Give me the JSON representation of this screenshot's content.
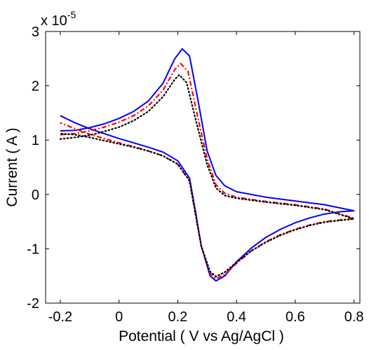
{
  "chart_data": {
    "type": "line",
    "title": "",
    "xlabel": "Potential ( V vs Ag/AgCl )",
    "ylabel": "Current ( A )",
    "y_multiplier_base": "x 10",
    "y_multiplier_exponent": "-5",
    "xlim": [
      -0.25,
      0.82
    ],
    "ylim": [
      -2,
      3
    ],
    "x_ticks": [
      -0.2,
      0,
      0.2,
      0.4,
      0.6,
      0.8
    ],
    "x_tick_labels": [
      "-0.2",
      "0",
      "0.2",
      "0.4",
      "0.6",
      "0.8"
    ],
    "y_ticks": [
      -2,
      -1,
      0,
      1,
      2,
      3
    ],
    "y_tick_labels": [
      "-2",
      "-1",
      "0",
      "1",
      "2",
      "3"
    ],
    "grid": false,
    "legend": false,
    "series": [
      {
        "color": "#0000ff",
        "style": "solid",
        "forward": [
          [
            -0.2,
            1.17
          ],
          [
            -0.15,
            1.18
          ],
          [
            -0.1,
            1.23
          ],
          [
            -0.05,
            1.3
          ],
          [
            0,
            1.4
          ],
          [
            0.05,
            1.53
          ],
          [
            0.1,
            1.72
          ],
          [
            0.15,
            2.05
          ],
          [
            0.19,
            2.5
          ],
          [
            0.215,
            2.68
          ],
          [
            0.24,
            2.55
          ],
          [
            0.27,
            1.7
          ],
          [
            0.3,
            0.8
          ],
          [
            0.33,
            0.35
          ],
          [
            0.36,
            0.16
          ],
          [
            0.4,
            0.05
          ],
          [
            0.5,
            -0.05
          ],
          [
            0.6,
            -0.12
          ],
          [
            0.7,
            -0.19
          ],
          [
            0.8,
            -0.3
          ]
        ],
        "reverse": [
          [
            0.8,
            -0.3
          ],
          [
            0.75,
            -0.32
          ],
          [
            0.7,
            -0.36
          ],
          [
            0.65,
            -0.43
          ],
          [
            0.6,
            -0.52
          ],
          [
            0.55,
            -0.64
          ],
          [
            0.5,
            -0.79
          ],
          [
            0.45,
            -0.99
          ],
          [
            0.4,
            -1.24
          ],
          [
            0.36,
            -1.5
          ],
          [
            0.33,
            -1.59
          ],
          [
            0.31,
            -1.5
          ],
          [
            0.28,
            -0.95
          ],
          [
            0.26,
            -0.3
          ],
          [
            0.24,
            0.3
          ],
          [
            0.2,
            0.62
          ],
          [
            0.15,
            0.78
          ],
          [
            0.1,
            0.87
          ],
          [
            0.05,
            0.95
          ],
          [
            0,
            1.03
          ],
          [
            -0.05,
            1.12
          ],
          [
            -0.1,
            1.21
          ],
          [
            -0.15,
            1.32
          ],
          [
            -0.2,
            1.45
          ]
        ]
      },
      {
        "color": "#ff0000",
        "style": "dash-dot",
        "forward": [
          [
            -0.2,
            1.1
          ],
          [
            -0.15,
            1.12
          ],
          [
            -0.1,
            1.17
          ],
          [
            -0.05,
            1.24
          ],
          [
            0,
            1.33
          ],
          [
            0.05,
            1.45
          ],
          [
            0.1,
            1.63
          ],
          [
            0.15,
            1.92
          ],
          [
            0.19,
            2.3
          ],
          [
            0.21,
            2.41
          ],
          [
            0.235,
            2.26
          ],
          [
            0.265,
            1.5
          ],
          [
            0.3,
            0.65
          ],
          [
            0.33,
            0.18
          ],
          [
            0.36,
            0.02
          ],
          [
            0.4,
            -0.05
          ],
          [
            0.5,
            -0.13
          ],
          [
            0.6,
            -0.19
          ],
          [
            0.7,
            -0.27
          ],
          [
            0.8,
            -0.44
          ]
        ],
        "reverse": [
          [
            0.8,
            -0.47
          ],
          [
            0.75,
            -0.47
          ],
          [
            0.7,
            -0.5
          ],
          [
            0.65,
            -0.56
          ],
          [
            0.6,
            -0.64
          ],
          [
            0.55,
            -0.74
          ],
          [
            0.5,
            -0.87
          ],
          [
            0.45,
            -1.04
          ],
          [
            0.4,
            -1.27
          ],
          [
            0.36,
            -1.47
          ],
          [
            0.33,
            -1.55
          ],
          [
            0.31,
            -1.45
          ],
          [
            0.28,
            -0.95
          ],
          [
            0.26,
            -0.35
          ],
          [
            0.24,
            0.25
          ],
          [
            0.2,
            0.55
          ],
          [
            0.15,
            0.71
          ],
          [
            0.1,
            0.8
          ],
          [
            0.05,
            0.88
          ],
          [
            0,
            0.95
          ],
          [
            -0.05,
            1.03
          ],
          [
            -0.1,
            1.11
          ],
          [
            -0.15,
            1.21
          ],
          [
            -0.2,
            1.32
          ]
        ]
      },
      {
        "color": "#000000",
        "style": "dotted",
        "forward": [
          [
            -0.2,
            1.02
          ],
          [
            -0.15,
            1.05
          ],
          [
            -0.1,
            1.09
          ],
          [
            -0.05,
            1.16
          ],
          [
            0,
            1.24
          ],
          [
            0.05,
            1.36
          ],
          [
            0.1,
            1.53
          ],
          [
            0.15,
            1.8
          ],
          [
            0.19,
            2.12
          ],
          [
            0.205,
            2.2
          ],
          [
            0.23,
            2.06
          ],
          [
            0.26,
            1.4
          ],
          [
            0.3,
            0.55
          ],
          [
            0.33,
            0.12
          ],
          [
            0.36,
            -0.02
          ],
          [
            0.4,
            -0.07
          ],
          [
            0.5,
            -0.14
          ],
          [
            0.6,
            -0.2
          ],
          [
            0.7,
            -0.28
          ],
          [
            0.8,
            -0.45
          ]
        ],
        "reverse": [
          [
            0.8,
            -0.48
          ],
          [
            0.75,
            -0.48
          ],
          [
            0.7,
            -0.51
          ],
          [
            0.65,
            -0.57
          ],
          [
            0.6,
            -0.65
          ],
          [
            0.55,
            -0.75
          ],
          [
            0.5,
            -0.88
          ],
          [
            0.45,
            -1.04
          ],
          [
            0.4,
            -1.25
          ],
          [
            0.36,
            -1.43
          ],
          [
            0.33,
            -1.51
          ],
          [
            0.31,
            -1.42
          ],
          [
            0.28,
            -0.95
          ],
          [
            0.26,
            -0.35
          ],
          [
            0.24,
            0.25
          ],
          [
            0.2,
            0.56
          ],
          [
            0.15,
            0.71
          ],
          [
            0.1,
            0.8
          ],
          [
            0.05,
            0.87
          ],
          [
            0,
            0.93
          ],
          [
            -0.05,
            0.99
          ],
          [
            -0.1,
            1.05
          ],
          [
            -0.15,
            1.1
          ],
          [
            -0.2,
            1.12
          ]
        ]
      }
    ]
  }
}
